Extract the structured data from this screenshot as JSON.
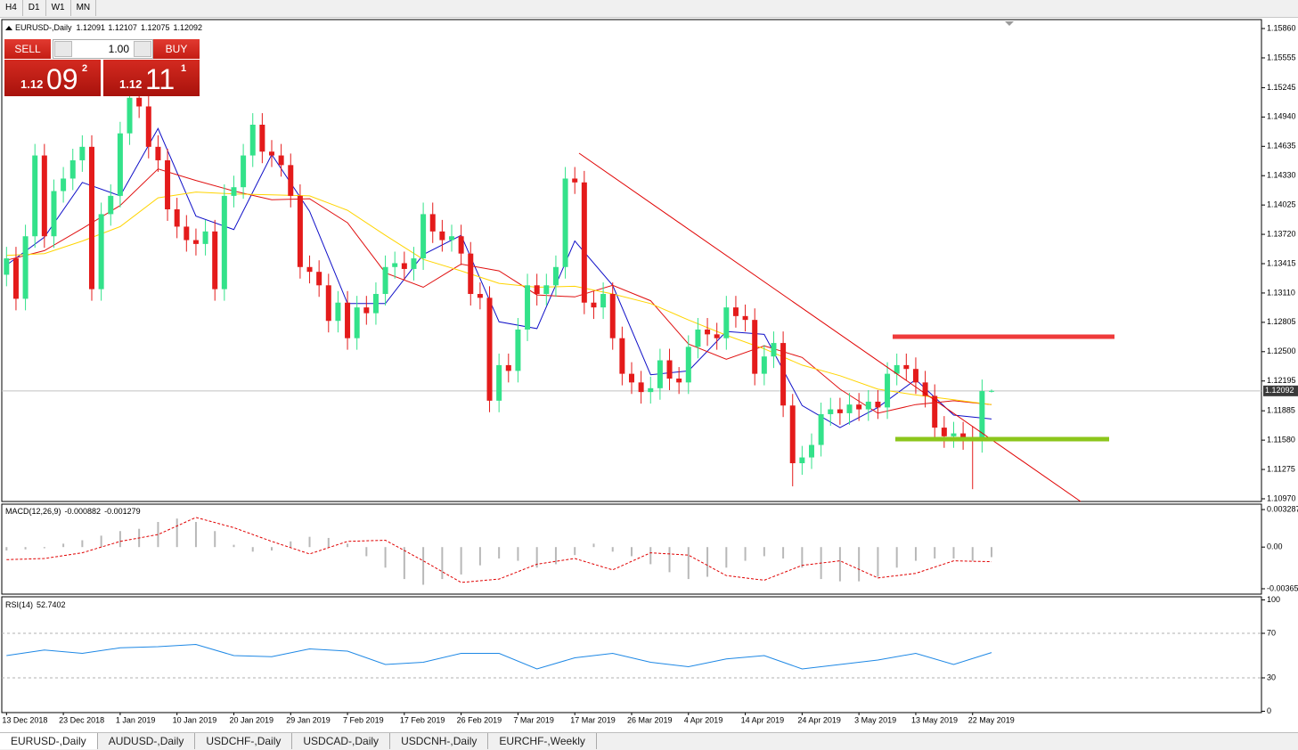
{
  "toolbar": [
    "H4",
    "D1",
    "W1",
    "MN"
  ],
  "trade_panel": {
    "sell": "SELL",
    "buy": "BUY",
    "lots": "1.00",
    "bid": [
      "1.12",
      "09",
      "2"
    ],
    "ask": [
      "1.12",
      "11",
      "1"
    ]
  },
  "tabs": [
    "EURUSD-,Daily",
    "AUDUSD-,Daily",
    "USDCHF-,Daily",
    "USDCAD-,Daily",
    "USDCNH-,Daily",
    "EURCHF-,Weekly"
  ],
  "chart_data": [
    {
      "type": "candlestick",
      "title": "EURUSD-,Daily",
      "up_color": "#33e28a",
      "down_color": "#e41b1b",
      "last_price": 1.12092,
      "xlim": [
        -0.5,
        132.5
      ],
      "xticks": [
        {
          "value": 0,
          "label": "13 Dec 2018"
        },
        {
          "value": 6,
          "label": "23 Dec 2018"
        },
        {
          "value": 12,
          "label": "1 Jan 2019"
        },
        {
          "value": 18,
          "label": "10 Jan 2019"
        },
        {
          "value": 24,
          "label": "20 Jan 2019"
        },
        {
          "value": 30,
          "label": "29 Jan 2019"
        },
        {
          "value": 36,
          "label": "7 Feb 2019"
        },
        {
          "value": 42,
          "label": "17 Feb 2019"
        },
        {
          "value": 48,
          "label": "26 Feb 2019"
        },
        {
          "value": 54,
          "label": "7 Mar 2019"
        },
        {
          "value": 60,
          "label": "17 Mar 2019"
        },
        {
          "value": 66,
          "label": "26 Mar 2019"
        },
        {
          "value": 72,
          "label": "4 Apr 2019"
        },
        {
          "value": 78,
          "label": "14 Apr 2019"
        },
        {
          "value": 84,
          "label": "24 Apr 2019"
        },
        {
          "value": 90,
          "label": "3 May 2019"
        },
        {
          "value": 96,
          "label": "13 May 2019"
        },
        {
          "value": 102,
          "label": "22 May 2019"
        }
      ],
      "ylim": [
        1.10942,
        1.15953
      ],
      "yticks": [
        {
          "value": 1.1586,
          "label": "1.15860"
        },
        1.15555,
        1.15245,
        {
          "value": 1.1494,
          "label": "1.14940"
        },
        1.14635,
        {
          "value": 1.1433,
          "label": "1.14330"
        },
        1.14025,
        {
          "value": 1.1372,
          "label": "1.13720"
        },
        1.13415,
        {
          "value": 1.1311,
          "label": "1.13110"
        },
        1.12805,
        {
          "value": 1.125,
          "label": "1.12500"
        },
        1.12195,
        1.11885,
        {
          "value": 1.1158,
          "label": "1.11580"
        },
        1.11275,
        {
          "value": 1.1097,
          "label": "1.10970"
        }
      ],
      "ohlc": [
        [
          1.133,
          1.1359,
          1.1318,
          1.1347
        ],
        [
          1.1347,
          1.1359,
          1.1293,
          1.1305
        ],
        [
          1.1305,
          1.1382,
          1.1293,
          1.137
        ],
        [
          1.137,
          1.1466,
          1.1358,
          1.1454
        ],
        [
          1.1454,
          1.1466,
          1.1358,
          1.137
        ],
        [
          1.137,
          1.1429,
          1.1358,
          1.1417
        ],
        [
          1.1417,
          1.1442,
          1.1405,
          1.143
        ],
        [
          1.143,
          1.1461,
          1.1418,
          1.1449
        ],
        [
          1.1449,
          1.1475,
          1.1437,
          1.1463
        ],
        [
          1.1463,
          1.1475,
          1.1303,
          1.1315
        ],
        [
          1.1315,
          1.1405,
          1.1303,
          1.1393
        ],
        [
          1.1393,
          1.1424,
          1.1381,
          1.1412
        ],
        [
          1.1412,
          1.1489,
          1.14,
          1.1477
        ],
        [
          1.1477,
          1.1526,
          1.1465,
          1.1514
        ],
        [
          1.1514,
          1.1526,
          1.1493,
          1.1505
        ],
        [
          1.1505,
          1.1517,
          1.1451,
          1.1463
        ],
        [
          1.1463,
          1.1475,
          1.1437,
          1.1449
        ],
        [
          1.1449,
          1.1461,
          1.1386,
          1.1398
        ],
        [
          1.1398,
          1.141,
          1.1368,
          1.138
        ],
        [
          1.138,
          1.1392,
          1.1354,
          1.1366
        ],
        [
          1.1366,
          1.1378,
          1.135,
          1.1362
        ],
        [
          1.1362,
          1.1387,
          1.135,
          1.1375
        ],
        [
          1.1375,
          1.1387,
          1.1303,
          1.1315
        ],
        [
          1.1315,
          1.1424,
          1.1303,
          1.1412
        ],
        [
          1.1412,
          1.1433,
          1.14,
          1.1421
        ],
        [
          1.1421,
          1.1466,
          1.1409,
          1.1454
        ],
        [
          1.1454,
          1.1498,
          1.1442,
          1.1486
        ],
        [
          1.1486,
          1.1498,
          1.1446,
          1.1458
        ],
        [
          1.1458,
          1.147,
          1.1442,
          1.1454
        ],
        [
          1.1454,
          1.1466,
          1.1432,
          1.1444
        ],
        [
          1.1444,
          1.1456,
          1.14,
          1.1412
        ],
        [
          1.1412,
          1.1424,
          1.1326,
          1.1338
        ],
        [
          1.1338,
          1.135,
          1.1321,
          1.1333
        ],
        [
          1.1333,
          1.1345,
          1.1307,
          1.1319
        ],
        [
          1.1319,
          1.1331,
          1.127,
          1.1282
        ],
        [
          1.1282,
          1.1313,
          1.127,
          1.1301
        ],
        [
          1.1301,
          1.1313,
          1.1252,
          1.1264
        ],
        [
          1.1264,
          1.1308,
          1.1252,
          1.1296
        ],
        [
          1.1296,
          1.1308,
          1.1278,
          1.129
        ],
        [
          1.129,
          1.1322,
          1.1278,
          1.131
        ],
        [
          1.131,
          1.135,
          1.1298,
          1.1338
        ],
        [
          1.1338,
          1.1354,
          1.1326,
          1.1342
        ],
        [
          1.1342,
          1.1354,
          1.1324,
          1.1336
        ],
        [
          1.1336,
          1.1359,
          1.1324,
          1.1347
        ],
        [
          1.1347,
          1.1405,
          1.1335,
          1.1393
        ],
        [
          1.1393,
          1.1405,
          1.1363,
          1.1375
        ],
        [
          1.1375,
          1.1387,
          1.1354,
          1.1366
        ],
        [
          1.1366,
          1.1382,
          1.1354,
          1.137
        ],
        [
          1.137,
          1.1382,
          1.134,
          1.1352
        ],
        [
          1.1352,
          1.1364,
          1.1298,
          1.131
        ],
        [
          1.131,
          1.1322,
          1.1294,
          1.1306
        ],
        [
          1.1306,
          1.1318,
          1.1187,
          1.1199
        ],
        [
          1.1199,
          1.1248,
          1.1187,
          1.1236
        ],
        [
          1.1236,
          1.1248,
          1.1218,
          1.123
        ],
        [
          1.123,
          1.1285,
          1.1218,
          1.1273
        ],
        [
          1.1273,
          1.1331,
          1.1261,
          1.1319
        ],
        [
          1.1319,
          1.1331,
          1.1298,
          1.131
        ],
        [
          1.131,
          1.1331,
          1.1298,
          1.1319
        ],
        [
          1.1319,
          1.135,
          1.1307,
          1.1338
        ],
        [
          1.1338,
          1.1442,
          1.1326,
          1.143
        ],
        [
          1.143,
          1.1442,
          1.1414,
          1.1426
        ],
        [
          1.1426,
          1.1438,
          1.1289,
          1.1301
        ],
        [
          1.1301,
          1.1313,
          1.1284,
          1.1296
        ],
        [
          1.1296,
          1.1322,
          1.1284,
          1.131
        ],
        [
          1.131,
          1.1322,
          1.1252,
          1.1264
        ],
        [
          1.1264,
          1.1276,
          1.1215,
          1.1227
        ],
        [
          1.1227,
          1.1239,
          1.1206,
          1.1218
        ],
        [
          1.1218,
          1.123,
          1.1196,
          1.1208
        ],
        [
          1.1208,
          1.1224,
          1.1196,
          1.1212
        ],
        [
          1.1212,
          1.1253,
          1.12,
          1.1241
        ],
        [
          1.1241,
          1.1253,
          1.121,
          1.1222
        ],
        [
          1.1222,
          1.1234,
          1.1206,
          1.1218
        ],
        [
          1.1218,
          1.1267,
          1.1206,
          1.1255
        ],
        [
          1.1255,
          1.1285,
          1.1243,
          1.1273
        ],
        [
          1.1273,
          1.1285,
          1.1256,
          1.1268
        ],
        [
          1.1268,
          1.128,
          1.1252,
          1.1264
        ],
        [
          1.1264,
          1.1308,
          1.1252,
          1.1296
        ],
        [
          1.1296,
          1.1308,
          1.1275,
          1.1287
        ],
        [
          1.1287,
          1.1299,
          1.1271,
          1.1283
        ],
        [
          1.1283,
          1.1295,
          1.1215,
          1.1227
        ],
        [
          1.1227,
          1.1257,
          1.1215,
          1.1245
        ],
        [
          1.1245,
          1.1271,
          1.1233,
          1.1259
        ],
        [
          1.1259,
          1.1271,
          1.1182,
          1.1194
        ],
        [
          1.1194,
          1.1206,
          1.111,
          1.1134
        ],
        [
          1.1134,
          1.1152,
          1.1122,
          1.114
        ],
        [
          1.114,
          1.1165,
          1.1128,
          1.1153
        ],
        [
          1.1153,
          1.1197,
          1.1141,
          1.1185
        ],
        [
          1.1185,
          1.1202,
          1.1173,
          1.119
        ],
        [
          1.119,
          1.1202,
          1.1174,
          1.1186
        ],
        [
          1.1186,
          1.1207,
          1.1174,
          1.1195
        ],
        [
          1.1195,
          1.1207,
          1.1178,
          1.119
        ],
        [
          1.119,
          1.121,
          1.1178,
          1.1198
        ],
        [
          1.1198,
          1.121,
          1.118,
          1.1192
        ],
        [
          1.1192,
          1.1239,
          1.118,
          1.1227
        ],
        [
          1.1227,
          1.1248,
          1.1215,
          1.1236
        ],
        [
          1.1236,
          1.1248,
          1.122,
          1.1232
        ],
        [
          1.1232,
          1.1244,
          1.1206,
          1.1218
        ],
        [
          1.1218,
          1.123,
          1.1192,
          1.1204
        ],
        [
          1.1204,
          1.1216,
          1.1159,
          1.1171
        ],
        [
          1.1171,
          1.1183,
          1.115,
          1.1162
        ],
        [
          1.1162,
          1.1177,
          1.115,
          1.1165
        ],
        [
          1.1165,
          1.1177,
          1.1148,
          1.116
        ],
        [
          1.116,
          1.1172,
          1.1107,
          1.1157
        ],
        [
          1.1157,
          1.1221,
          1.1145,
          1.1209
        ],
        [
          1.12091,
          1.12107,
          1.12075,
          1.12092
        ]
      ],
      "series": [
        {
          "color": "#1010c8",
          "x": [
            0,
            4,
            8,
            12,
            16,
            20,
            24,
            28,
            32,
            36,
            40,
            44,
            48,
            52,
            56,
            60,
            64,
            68,
            72,
            76,
            80,
            84,
            88,
            92,
            96,
            100,
            104
          ],
          "values": [
            1.134,
            1.1369,
            1.1426,
            1.1412,
            1.1482,
            1.1391,
            1.1377,
            1.1455,
            1.1396,
            1.13,
            1.13,
            1.1351,
            1.1371,
            1.1281,
            1.1274,
            1.1365,
            1.1319,
            1.1226,
            1.123,
            1.1271,
            1.1268,
            1.1194,
            1.1171,
            1.1192,
            1.1221,
            1.1184,
            1.118
          ]
        },
        {
          "color": "#e01010",
          "x": [
            0,
            4,
            8,
            12,
            16,
            20,
            24,
            28,
            32,
            36,
            40,
            44,
            48,
            52,
            56,
            60,
            64,
            68,
            72,
            76,
            80,
            84,
            88,
            92,
            96,
            100,
            104
          ],
          "values": [
            1.1345,
            1.1355,
            1.1378,
            1.1402,
            1.144,
            1.1428,
            1.1417,
            1.1408,
            1.1409,
            1.1384,
            1.1332,
            1.1317,
            1.1341,
            1.1334,
            1.1309,
            1.1307,
            1.1319,
            1.1303,
            1.1258,
            1.1242,
            1.1256,
            1.1244,
            1.1211,
            1.1186,
            1.1195,
            1.1199,
            1.1195
          ]
        },
        {
          "color": "#ffd400",
          "x": [
            0,
            4,
            8,
            12,
            16,
            20,
            24,
            28,
            32,
            36,
            40,
            44,
            48,
            52,
            56,
            60,
            64,
            68,
            72,
            76,
            80,
            84,
            88,
            92,
            96,
            100,
            104
          ],
          "values": [
            1.135,
            1.1352,
            1.1365,
            1.138,
            1.141,
            1.1416,
            1.1414,
            1.1413,
            1.1412,
            1.1397,
            1.1371,
            1.1346,
            1.1334,
            1.1321,
            1.1317,
            1.1318,
            1.131,
            1.13,
            1.1283,
            1.1267,
            1.1253,
            1.1236,
            1.1225,
            1.1211,
            1.1205,
            1.12,
            1.1195
          ]
        }
      ]
    },
    {
      "type": "macd",
      "title": "MACD(12,26,9)",
      "color": "#b8b8b8",
      "ylim": [
        -0.00412,
        0.00376
      ],
      "yticks": [
        0.003287,
        {
          "value": 0,
          "label": "0.00"
        },
        -0.00365
      ],
      "x": [
        0,
        2,
        4,
        6,
        8,
        10,
        12,
        14,
        16,
        18,
        20,
        22,
        24,
        26,
        28,
        30,
        32,
        34,
        36,
        38,
        40,
        42,
        44,
        46,
        48,
        50,
        52,
        54,
        56,
        58,
        60,
        62,
        64,
        66,
        68,
        70,
        72,
        74,
        76,
        78,
        80,
        82,
        84,
        86,
        88,
        90,
        92,
        94,
        96,
        98,
        100,
        102,
        104
      ],
      "values": [
        -0.0003,
        -0.0002,
        -0.0001,
        0.0003,
        0.0006,
        0.001,
        0.0014,
        0.0016,
        0.0022,
        0.0025,
        0.0022,
        0.0014,
        0.0002,
        -0.0004,
        -0.0003,
        0.0005,
        0.0009,
        0.0008,
        0.0003,
        -0.0008,
        -0.0018,
        -0.0028,
        -0.0033,
        -0.0028,
        -0.0024,
        -0.0016,
        -0.001,
        -0.0012,
        -0.0018,
        -0.0015,
        -0.0007,
        0.0003,
        -0.0004,
        -0.0008,
        -0.0015,
        -0.0022,
        -0.0028,
        -0.0026,
        -0.0018,
        -0.0012,
        -0.0008,
        -0.001,
        -0.0018,
        -0.0028,
        -0.003,
        -0.003,
        -0.0026,
        -0.0018,
        -0.0012,
        -0.001,
        -0.001,
        -0.0012,
        -0.000882
      ],
      "signal": {
        "color": "#e00000",
        "x": [
          0,
          4,
          8,
          12,
          16,
          20,
          24,
          28,
          32,
          36,
          40,
          44,
          48,
          52,
          56,
          60,
          64,
          68,
          72,
          76,
          80,
          84,
          88,
          92,
          96,
          100,
          104
        ],
        "values": [
          -0.0011,
          -0.001,
          -0.0005,
          0.0005,
          0.0011,
          0.0026,
          0.0017,
          0.0005,
          -0.0006,
          0.0005,
          0.0006,
          -0.0012,
          -0.0031,
          -0.0028,
          -0.0015,
          -0.001,
          -0.002,
          -0.0005,
          -0.0007,
          -0.0025,
          -0.0029,
          -0.0016,
          -0.0012,
          -0.0027,
          -0.0023,
          -0.0012,
          -0.001279
        ]
      }
    },
    {
      "type": "line",
      "title": "RSI(14)",
      "color": "#1e88e5",
      "grid": "dashed",
      "ylim": [
        -1.2,
        102.8
      ],
      "yticks": [
        100,
        70,
        30,
        0
      ],
      "x": [
        0,
        4,
        8,
        12,
        16,
        20,
        24,
        28,
        32,
        36,
        40,
        44,
        48,
        52,
        56,
        60,
        64,
        68,
        72,
        76,
        80,
        84,
        88,
        92,
        96,
        100,
        104
      ],
      "values": [
        50,
        55,
        52,
        57,
        58,
        60,
        50,
        49,
        56,
        54,
        42,
        44,
        52,
        52,
        38,
        48,
        52,
        44,
        40,
        47,
        50,
        38,
        42,
        46,
        52,
        42,
        52.7402
      ]
    }
  ]
}
